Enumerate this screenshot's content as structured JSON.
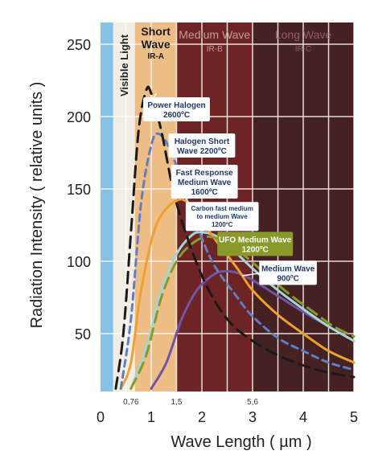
{
  "chart_data": {
    "type": "line",
    "xlabel": "Wave Length ( µm )",
    "ylabel": "Radiation Intensity ( relative units )",
    "xlim": [
      0,
      5
    ],
    "ylim": [
      10,
      265
    ],
    "x_ticks": [
      "0",
      "1",
      "2",
      "3",
      "4",
      "5"
    ],
    "y_ticks": [
      "50",
      "100",
      "150",
      "200",
      "250"
    ],
    "boundary_labels": [
      "0,76",
      "1,5",
      "5,6"
    ],
    "bands": [
      {
        "label": "",
        "sub": "",
        "x0": 0.0,
        "x1": 0.25,
        "color": "#84c3e3"
      },
      {
        "label": "Visible Light",
        "sub": "",
        "x0": 0.25,
        "x1": 0.68,
        "color": "#f3ece2"
      },
      {
        "label": "Short Wave",
        "sub": "IR-A",
        "x0": 0.68,
        "x1": 1.5,
        "color": "#eebc85"
      },
      {
        "label": "Medium Wave",
        "sub": "IR-B",
        "x0": 1.5,
        "x1": 3.0,
        "color": "#6e2324"
      },
      {
        "label": "Long Wave",
        "sub": "IR-C",
        "x0": 3.0,
        "x1": 5.0,
        "color": "#462122"
      }
    ],
    "series": [
      {
        "name": "Power Halogen 2600ºC",
        "color": "#1a1a1a",
        "dash": "long",
        "points": [
          [
            0.3,
            12
          ],
          [
            0.45,
            50
          ],
          [
            0.6,
            120
          ],
          [
            0.75,
            190
          ],
          [
            0.9,
            218
          ],
          [
            1.0,
            216
          ],
          [
            1.2,
            190
          ],
          [
            1.5,
            140
          ],
          [
            2.0,
            90
          ],
          [
            2.5,
            60
          ],
          [
            3.0,
            45
          ],
          [
            3.5,
            35
          ],
          [
            4.0,
            28
          ],
          [
            4.5,
            23
          ],
          [
            5.0,
            20
          ]
        ]
      },
      {
        "name": "Halogen Short Wave 2200ºC",
        "color": "#5d7fc4",
        "dash": "short",
        "points": [
          [
            0.4,
            12
          ],
          [
            0.6,
            60
          ],
          [
            0.8,
            140
          ],
          [
            1.0,
            180
          ],
          [
            1.15,
            188
          ],
          [
            1.4,
            175
          ],
          [
            1.8,
            135
          ],
          [
            2.2,
            100
          ],
          [
            2.7,
            75
          ],
          [
            3.0,
            62
          ],
          [
            3.5,
            47
          ],
          [
            4.0,
            38
          ],
          [
            4.5,
            30
          ],
          [
            5.0,
            25
          ]
        ]
      },
      {
        "name": "Fast Response Medium Wave 1600ºC",
        "color": "#f0a030",
        "dash": "solid",
        "points": [
          [
            0.4,
            12
          ],
          [
            0.6,
            30
          ],
          [
            0.8,
            80
          ],
          [
            1.1,
            125
          ],
          [
            1.5,
            142
          ],
          [
            1.8,
            138
          ],
          [
            2.2,
            118
          ],
          [
            2.7,
            95
          ],
          [
            3.0,
            80
          ],
          [
            3.5,
            63
          ],
          [
            4.0,
            50
          ],
          [
            4.5,
            38
          ],
          [
            5.0,
            30
          ]
        ]
      },
      {
        "name": "Carbon fast medium to medium Wave 1200ºC",
        "color": "#9fd8d6",
        "dash": "solid",
        "points": [
          [
            0.6,
            12
          ],
          [
            0.9,
            40
          ],
          [
            1.2,
            80
          ],
          [
            1.5,
            105
          ],
          [
            1.8,
            118
          ],
          [
            2.0,
            120
          ],
          [
            2.3,
            117
          ],
          [
            2.7,
            105
          ],
          [
            3.0,
            95
          ],
          [
            3.5,
            80
          ],
          [
            4.0,
            67
          ],
          [
            4.5,
            55
          ],
          [
            5.0,
            45
          ]
        ]
      },
      {
        "name": "UFO Medium Wave 1200ºC",
        "color": "#8a9a2a",
        "dash": "long",
        "points": [
          [
            0.6,
            12
          ],
          [
            0.9,
            35
          ],
          [
            1.2,
            75
          ],
          [
            1.5,
            100
          ],
          [
            1.8,
            112
          ],
          [
            2.1,
            117
          ],
          [
            2.4,
            114
          ],
          [
            2.8,
            105
          ],
          [
            3.2,
            93
          ],
          [
            3.7,
            78
          ],
          [
            4.2,
            65
          ],
          [
            4.6,
            55
          ],
          [
            5.0,
            48
          ]
        ]
      },
      {
        "name": "Medium Wave 900ºC",
        "color": "#6f55a8",
        "dash": "solid",
        "points": [
          [
            1.0,
            12
          ],
          [
            1.3,
            30
          ],
          [
            1.6,
            60
          ],
          [
            1.9,
            80
          ],
          [
            2.2,
            90
          ],
          [
            2.4,
            93
          ],
          [
            2.7,
            92
          ],
          [
            3.0,
            87
          ],
          [
            3.5,
            76
          ],
          [
            4.0,
            65
          ],
          [
            4.5,
            55
          ],
          [
            5.0,
            45
          ]
        ]
      }
    ],
    "callouts": [
      {
        "lines": [
          "Power Halogen",
          "2600ºC"
        ],
        "anchor": [
          1.1,
          216
        ],
        "box": [
          1.5,
          205
        ],
        "fill": "#ffffff",
        "text": "#1f3a6d"
      },
      {
        "lines": [
          "Halogen Short",
          "Wave  2200ºC"
        ],
        "anchor": [
          1.35,
          188
        ],
        "box": [
          2.0,
          180
        ],
        "fill": "#ffffff",
        "text": "#1f3a6d"
      },
      {
        "lines": [
          "Fast Response",
          "Medium Wave",
          "1600ºC"
        ],
        "anchor": [
          1.75,
          140
        ],
        "box": [
          2.05,
          155
        ],
        "fill": "#ffffff",
        "text": "#1f3a6d"
      },
      {
        "lines": [
          "Carbon fast medium",
          "to medium Wave",
          "1200ºC"
        ],
        "anchor": [
          2.1,
          121
        ],
        "box": [
          2.4,
          131
        ],
        "fill": "#ffffff",
        "text": "#1f3a6d"
      },
      {
        "lines": [
          "UFO Medium Wave",
          "1200ºC"
        ],
        "anchor": [
          2.4,
          116
        ],
        "box": [
          3.05,
          112
        ],
        "fill": "#8a9a2a",
        "text": "#ffffff"
      },
      {
        "lines": [
          "Medium Wave",
          "900ºC"
        ],
        "anchor": [
          2.8,
          90
        ],
        "box": [
          3.7,
          92
        ],
        "fill": "#ffffff",
        "text": "#1f3a6d"
      }
    ],
    "grid": true
  }
}
